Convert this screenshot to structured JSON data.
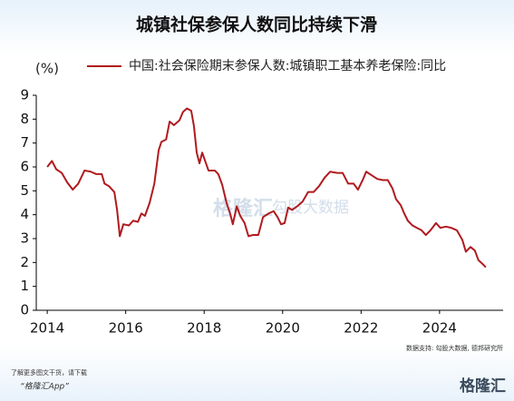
{
  "chart_data": {
    "type": "line",
    "title": "城镇社保参保人数同比持续下滑",
    "y_unit_label": "(%)",
    "x": [
      2014.0,
      2014.12,
      2014.23,
      2014.37,
      2014.51,
      2014.65,
      2014.79,
      2014.95,
      2015.11,
      2015.25,
      2015.39,
      2015.46,
      2015.57,
      2015.71,
      2015.78,
      2015.85,
      2015.94,
      2016.08,
      2016.19,
      2016.31,
      2016.4,
      2016.49,
      2016.61,
      2016.73,
      2016.84,
      2016.91,
      2017.03,
      2017.12,
      2017.23,
      2017.37,
      2017.46,
      2017.56,
      2017.67,
      2017.74,
      2017.81,
      2017.88,
      2017.95,
      2018.11,
      2018.27,
      2018.36,
      2018.46,
      2018.57,
      2018.67,
      2018.73,
      2018.83,
      2018.92,
      2019.03,
      2019.13,
      2019.24,
      2019.38,
      2019.5,
      2019.64,
      2019.77,
      2019.87,
      2019.96,
      2020.05,
      2020.14,
      2020.24,
      2020.37,
      2020.51,
      2020.65,
      2020.79,
      2020.93,
      2021.07,
      2021.21,
      2021.39,
      2021.53,
      2021.67,
      2021.81,
      2021.92,
      2022.04,
      2022.13,
      2022.27,
      2022.41,
      2022.55,
      2022.68,
      2022.8,
      2022.89,
      2023.01,
      2023.1,
      2023.19,
      2023.31,
      2023.42,
      2023.54,
      2023.65,
      2023.77,
      2023.91,
      2024.02,
      2024.16,
      2024.3,
      2024.44,
      2024.58,
      2024.67,
      2024.79,
      2024.9,
      2024.99,
      2025.09,
      2025.18
    ],
    "series": [
      {
        "name": "中国:社会保险期末参保人数:城镇职工基本养老保险:同比",
        "color": "#b01a1f",
        "values": [
          6.0,
          6.25,
          5.9,
          5.75,
          5.35,
          5.05,
          5.3,
          5.85,
          5.8,
          5.7,
          5.7,
          5.3,
          5.2,
          4.95,
          4.2,
          3.1,
          3.6,
          3.55,
          3.75,
          3.7,
          4.05,
          3.95,
          4.5,
          5.3,
          6.7,
          7.05,
          7.15,
          7.9,
          7.75,
          7.95,
          8.3,
          8.45,
          8.35,
          7.7,
          6.6,
          6.15,
          6.6,
          5.85,
          5.85,
          5.7,
          5.25,
          4.5,
          4.0,
          3.6,
          4.35,
          3.95,
          3.65,
          3.1,
          3.15,
          3.15,
          3.9,
          4.05,
          4.15,
          3.9,
          3.6,
          3.65,
          4.3,
          4.2,
          4.35,
          4.55,
          4.95,
          4.95,
          5.2,
          5.55,
          5.8,
          5.75,
          5.75,
          5.3,
          5.3,
          5.05,
          5.45,
          5.8,
          5.65,
          5.5,
          5.45,
          5.45,
          5.1,
          4.65,
          4.4,
          4.05,
          3.75,
          3.55,
          3.45,
          3.35,
          3.15,
          3.35,
          3.65,
          3.45,
          3.5,
          3.45,
          3.35,
          2.95,
          2.45,
          2.65,
          2.5,
          2.1,
          1.95,
          1.8
        ]
      }
    ],
    "xlim": [
      2013.72,
      2025.62
    ],
    "xticks": [
      2014,
      2016,
      2018,
      2020,
      2022,
      2024
    ],
    "ylim": [
      0,
      9
    ],
    "yticks": [
      0,
      1,
      2,
      3,
      4,
      5,
      6,
      7,
      8,
      9
    ],
    "grid": false,
    "source": "数据支持: 勾股大数据, 德邦研究所",
    "watermarks": [
      "格隆汇",
      "勾股大数据"
    ]
  },
  "footer": {
    "line1": "了解更多图文干货，请下载",
    "line2": "“格隆汇App”",
    "logo": "格隆汇"
  }
}
